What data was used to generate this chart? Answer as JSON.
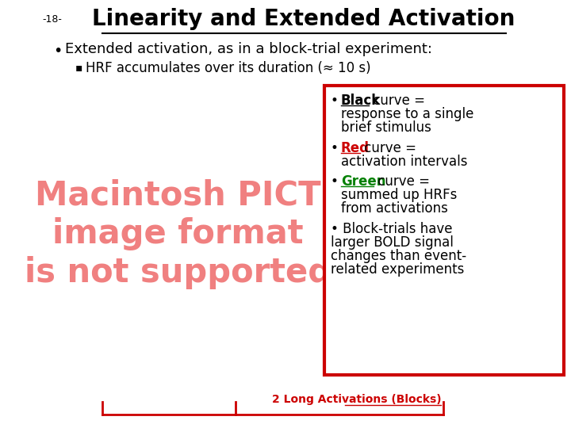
{
  "slide_number": "-18-",
  "title": "Linearity and Extended Activation",
  "bullet1": "Extended activation, as in a block-trial experiment:",
  "sub_bullet1": "HRF accumulates over its duration (≈ 10 s)",
  "pict_text": "Macintosh PICT\nimage format\nis not supported",
  "bottom_label": "2 Long Activations (Blocks)",
  "bg_color": "#ffffff",
  "title_color": "#000000",
  "text_color": "#000000",
  "red_color": "#cc0000",
  "green_color": "#008000",
  "pict_color": "#f08080",
  "legend_box_color": "#cc0000",
  "slide_num_color": "#000000"
}
